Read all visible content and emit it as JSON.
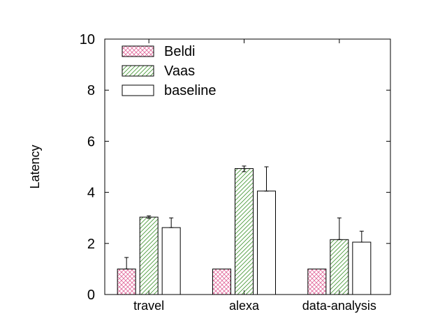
{
  "chart_data": {
    "type": "bar",
    "title": "",
    "xlabel": "",
    "ylabel": "Latency",
    "ylim": [
      0,
      10
    ],
    "yticks": [
      "0",
      "2",
      "4",
      "6",
      "8",
      "10"
    ],
    "grid": false,
    "legend_position": "top-left",
    "categories": [
      "travel",
      "alexa",
      "data-analysis"
    ],
    "series": [
      {
        "name": "Beldi",
        "values": [
          1.0,
          1.0,
          1.0
        ],
        "errors": [
          [
            0.0,
            0.45
          ],
          [
            0.0,
            0.0
          ],
          [
            0.0,
            0.0
          ]
        ],
        "pattern": "crosshatch",
        "color": "#e0679a"
      },
      {
        "name": "Vaas",
        "values": [
          3.03,
          4.93,
          2.15
        ],
        "errors": [
          [
            0.05,
            0.05
          ],
          [
            0.12,
            0.1
          ],
          [
            0.0,
            0.85
          ]
        ],
        "pattern": "diagonal",
        "color": "#4a9a3a"
      },
      {
        "name": "baseline",
        "values": [
          2.62,
          4.05,
          2.05
        ],
        "errors": [
          [
            0.0,
            0.38
          ],
          [
            0.0,
            0.95
          ],
          [
            0.0,
            0.43
          ]
        ],
        "pattern": "none",
        "color": "#ffffff"
      }
    ]
  }
}
